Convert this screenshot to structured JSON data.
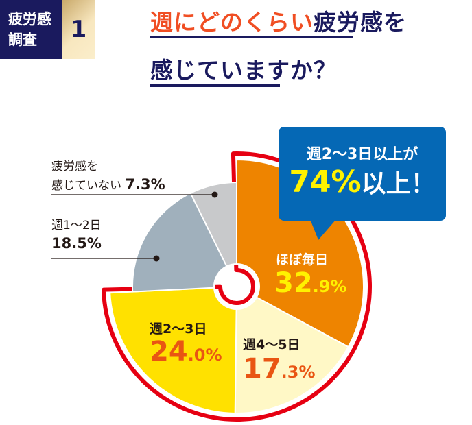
{
  "header": {
    "badge_line1": "疲労感",
    "badge_line2": "調査",
    "number": "1",
    "title_highlight": "週にどのくらい",
    "title_rest": "疲労感を",
    "title_line2": "感じていますか？"
  },
  "callout": {
    "line1": "週2〜3日以上が",
    "value": "74%",
    "suffix": "以上！"
  },
  "colors": {
    "navy": "#1a1a5e",
    "accent": "#f04e23",
    "red": "#e60012",
    "blue": "#0568b5"
  },
  "chart_data": {
    "type": "pie",
    "title": "週にどのくらい疲労感を感じていますか？",
    "slices": [
      {
        "label": "ほぼ毎日",
        "value": 32.9,
        "value_int": "32",
        "value_dec": ".9%",
        "color": "#ee8400",
        "highlight": true
      },
      {
        "label": "週4〜5日",
        "value": 17.3,
        "value_int": "17",
        "value_dec": ".3%",
        "color": "#fff8c6",
        "highlight": true
      },
      {
        "label": "週2〜3日",
        "value": 24.0,
        "value_int": "24",
        "value_dec": ".0%",
        "color": "#ffe100",
        "highlight": true
      },
      {
        "label": "週1〜2日",
        "value": 18.5,
        "value_text": "18.5%",
        "color": "#a0b0bc",
        "highlight": false
      },
      {
        "label": "疲労感を感じていない",
        "label_line1": "疲労感を",
        "label_line2": "感じていない",
        "value": 7.3,
        "value_text": "7.3%",
        "color": "#c8c9cb",
        "highlight": false
      }
    ]
  }
}
